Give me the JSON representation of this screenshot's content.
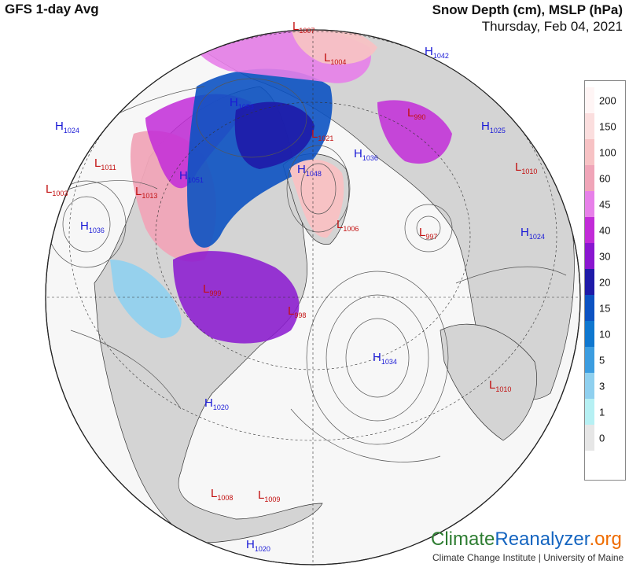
{
  "header": {
    "left_title": "GFS 1-day Avg",
    "right_title": "Snow Depth (cm), MSLP (hPa)",
    "date": "Thursday, Feb 04, 2021"
  },
  "legend": {
    "levels": [
      {
        "label": "200",
        "color": "#fff5f5"
      },
      {
        "label": "150",
        "color": "#fbdede"
      },
      {
        "label": "100",
        "color": "#f7c2c4"
      },
      {
        "label": "60",
        "color": "#f0a5b8"
      },
      {
        "label": "45",
        "color": "#e780e9"
      },
      {
        "label": "40",
        "color": "#c22bd8"
      },
      {
        "label": "30",
        "color": "#8a16d0"
      },
      {
        "label": "20",
        "color": "#1e1aa8"
      },
      {
        "label": "15",
        "color": "#0c52c2"
      },
      {
        "label": "10",
        "color": "#0f77cf"
      },
      {
        "label": "5",
        "color": "#3c9de0"
      },
      {
        "label": "3",
        "color": "#8fd0ef"
      },
      {
        "label": "1",
        "color": "#b6f0f3"
      },
      {
        "label": "0",
        "color": "#e6e6e6"
      }
    ]
  },
  "pressure_centers": [
    {
      "type": "H",
      "value": "1024",
      "color": "#1a1ad6"
    },
    {
      "type": "L",
      "value": "1011",
      "color": "#c21010"
    },
    {
      "type": "L",
      "value": "1003",
      "color": "#c21010"
    },
    {
      "type": "H",
      "value": "1036",
      "color": "#1a1ad6"
    },
    {
      "type": "L",
      "value": "1013",
      "color": "#c21010"
    },
    {
      "type": "H",
      "value": "1053",
      "color": "#1a1ad6"
    },
    {
      "type": "H",
      "value": "1051",
      "color": "#1a1ad6"
    },
    {
      "type": "L",
      "value": "1007",
      "color": "#c21010"
    },
    {
      "type": "L",
      "value": "1004",
      "color": "#c21010"
    },
    {
      "type": "H",
      "value": "1042",
      "color": "#1a1ad6"
    },
    {
      "type": "L",
      "value": "990",
      "color": "#c21010"
    },
    {
      "type": "H",
      "value": "1025",
      "color": "#1a1ad6"
    },
    {
      "type": "L",
      "value": "1021",
      "color": "#c21010"
    },
    {
      "type": "H",
      "value": "1036",
      "color": "#1a1ad6"
    },
    {
      "type": "H",
      "value": "1048",
      "color": "#1a1ad6"
    },
    {
      "type": "L",
      "value": "1006",
      "color": "#c21010"
    },
    {
      "type": "L",
      "value": "1010",
      "color": "#c21010"
    },
    {
      "type": "L",
      "value": "997",
      "color": "#c21010"
    },
    {
      "type": "H",
      "value": "1024",
      "color": "#1a1ad6"
    },
    {
      "type": "L",
      "value": "999",
      "color": "#c21010"
    },
    {
      "type": "L",
      "value": "998",
      "color": "#c21010"
    },
    {
      "type": "H",
      "value": "1034",
      "color": "#1a1ad6"
    },
    {
      "type": "H",
      "value": "1020",
      "color": "#1a1ad6"
    },
    {
      "type": "L",
      "value": "1010",
      "color": "#c21010"
    },
    {
      "type": "L",
      "value": "1008",
      "color": "#c21010"
    },
    {
      "type": "L",
      "value": "1009",
      "color": "#c21010"
    },
    {
      "type": "H",
      "value": "1020",
      "color": "#1a1ad6"
    }
  ],
  "brand": {
    "part1": "Climate",
    "part2": "Reanalyzer",
    "part3": ".org",
    "credit": "Climate Change Institute | University of Maine"
  }
}
